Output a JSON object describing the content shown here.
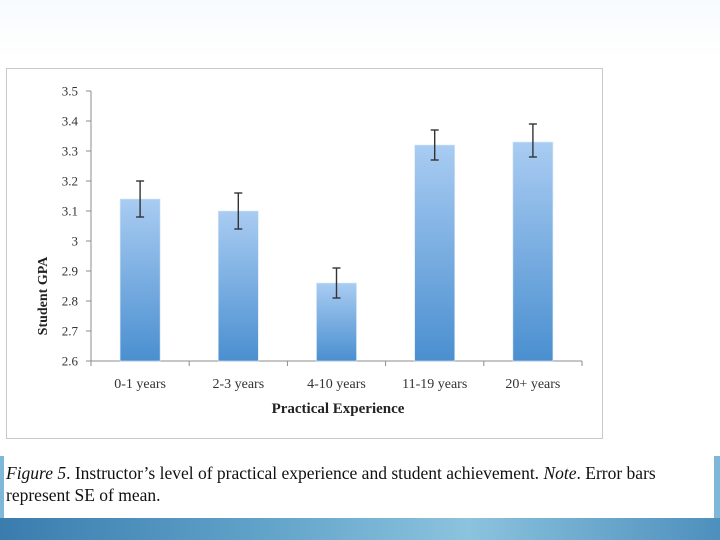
{
  "chart_data": {
    "type": "bar",
    "categories": [
      "0-1 years",
      "2-3 years",
      "4-10 years",
      "11-19 years",
      "20+ years"
    ],
    "values": [
      3.14,
      3.1,
      2.86,
      3.32,
      3.33
    ],
    "error_bars": [
      {
        "low": 3.08,
        "high": 3.2
      },
      {
        "low": 3.04,
        "high": 3.16
      },
      {
        "low": 2.81,
        "high": 2.91
      },
      {
        "low": 3.27,
        "high": 3.37
      },
      {
        "low": 3.28,
        "high": 3.39
      }
    ],
    "yticks": [
      "2.6",
      "2.7",
      "2.8",
      "2.9",
      "3",
      "3.1",
      "3.2",
      "3.3",
      "3.4",
      "3.5"
    ],
    "xlabel": "Practical Experience",
    "ylabel": "Student GPA",
    "ylim": [
      2.6,
      3.5
    ],
    "grid": false,
    "legend": "none",
    "bar_color_top": "#a9ccf2",
    "bar_color_bottom": "#4a8fd0"
  },
  "caption": {
    "figure_label": "Figure 5",
    "after_label": ".  Instructor’s level of practical experience and student achievement. ",
    "note_label": "Note",
    "note_text": ". Error bars represent SE of mean."
  }
}
